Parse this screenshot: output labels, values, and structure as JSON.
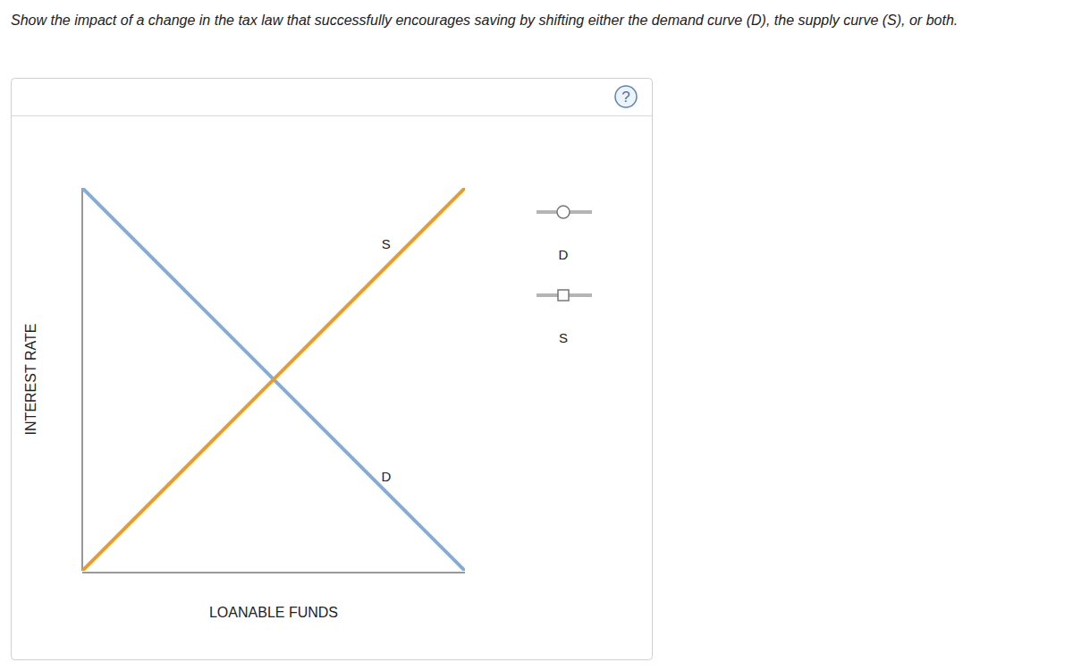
{
  "chart_data": {
    "type": "line",
    "title": "Show the impact of a change in the tax law that successfully encourages saving by shifting either the demand curve (D), the supply curve (S), or both.",
    "x_label": "LOANABLE FUNDS",
    "y_label": "INTEREST RATE",
    "x": [
      0,
      10
    ],
    "xlim": [
      0,
      10
    ],
    "ylim": [
      0,
      10
    ],
    "tick_labels": false,
    "grid": false,
    "legend": "right",
    "series": [
      {
        "name": "D",
        "color": "#86acd2",
        "marker": "circle",
        "values": [
          10,
          0
        ]
      },
      {
        "name": "S",
        "color": "#f39a1e",
        "marker": "square",
        "values": [
          0,
          10
        ]
      }
    ]
  },
  "toolbar": {
    "help": "?"
  }
}
